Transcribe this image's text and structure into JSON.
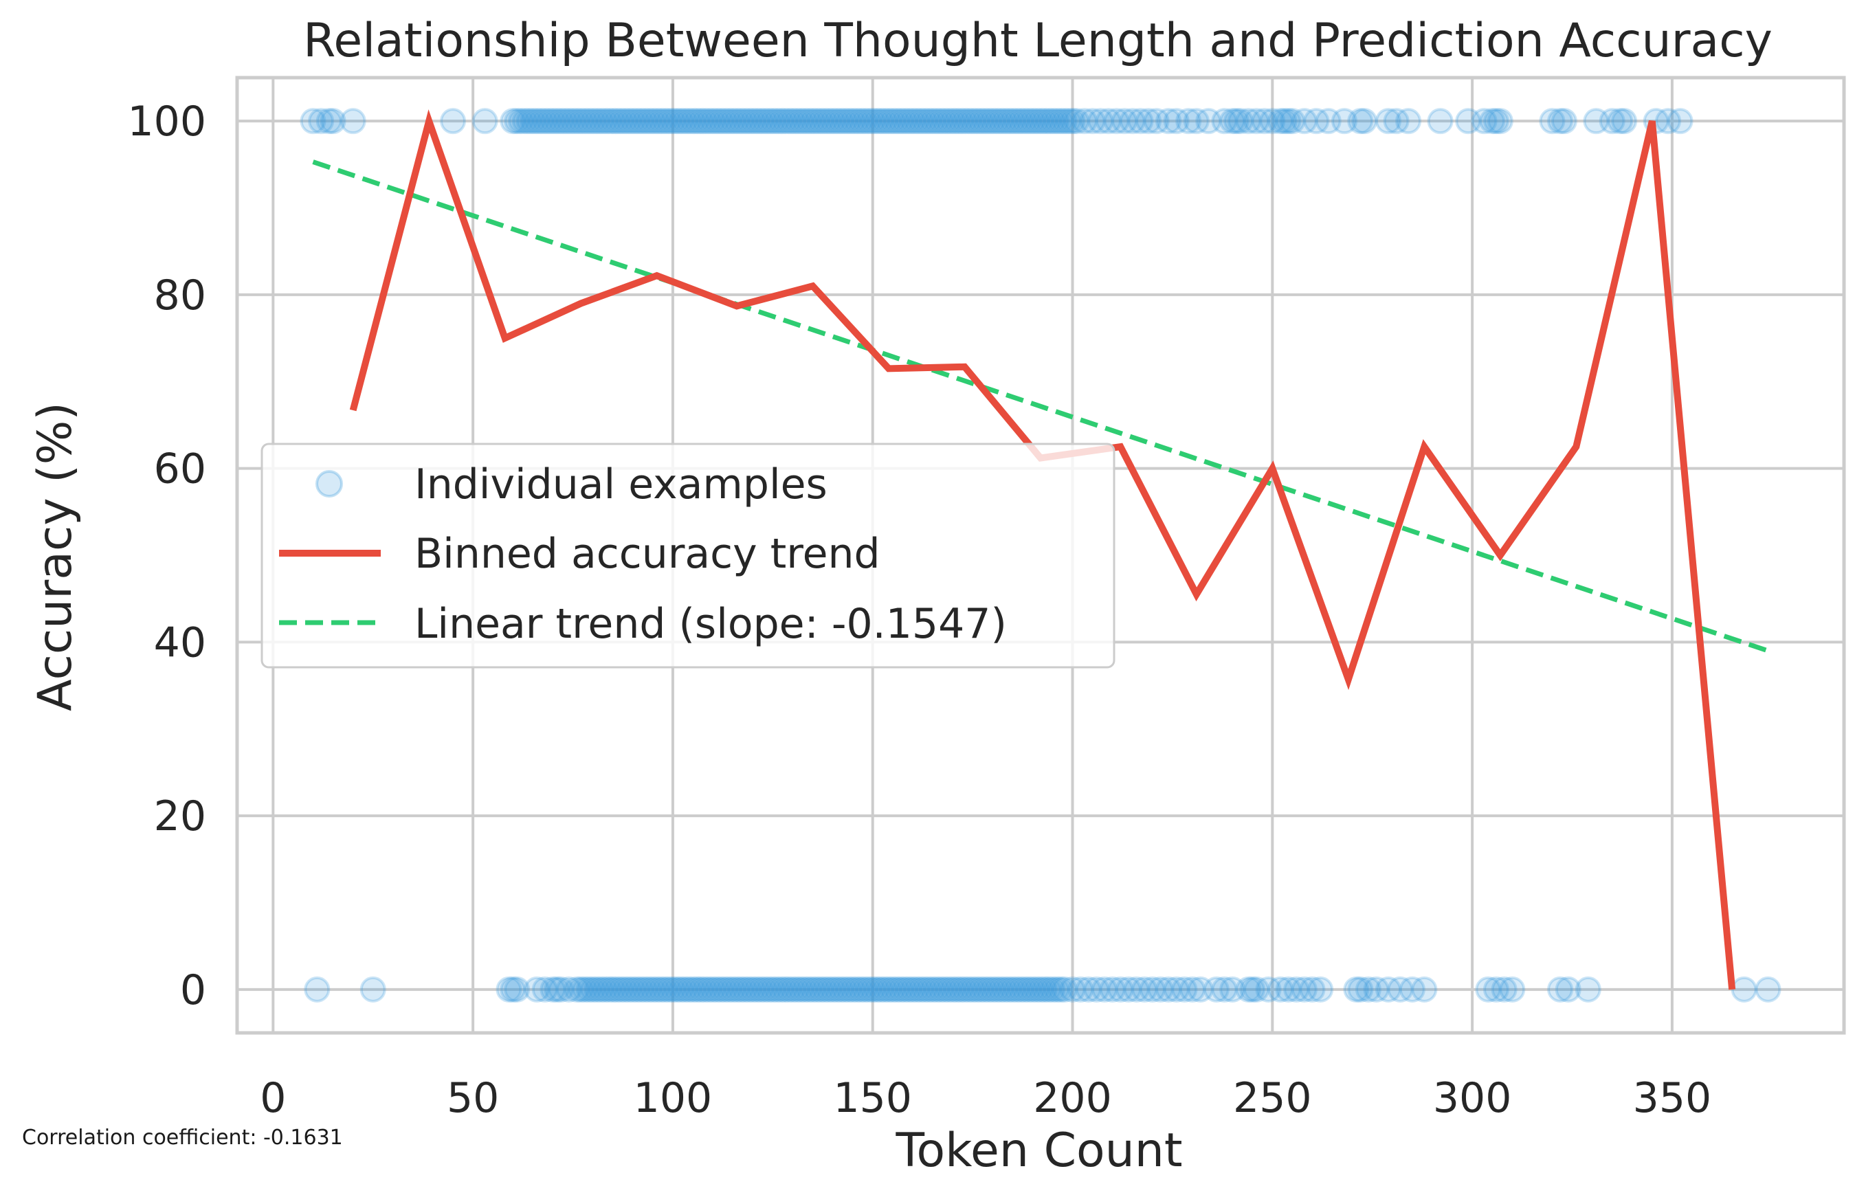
{
  "chart_data": {
    "type": "scatter",
    "title": "Relationship Between Thought Length and Prediction Accuracy",
    "xlabel": "Token Count",
    "ylabel": "Accuracy (%)",
    "xlim": [
      -9,
      393
    ],
    "ylim": [
      -5,
      105
    ],
    "xticks": [
      0,
      50,
      100,
      150,
      200,
      250,
      300,
      350
    ],
    "yticks": [
      0,
      20,
      40,
      60,
      80,
      100
    ],
    "grid": true,
    "legend_position": "center-left",
    "annotation": "Correlation coefficient: -0.1631",
    "series": [
      {
        "name": "Individual examples",
        "kind": "scatter",
        "color": "#3498db",
        "points_y100_x": [
          10,
          12,
          14,
          15,
          20,
          45,
          53,
          60,
          61,
          62,
          63,
          64,
          65,
          66,
          67,
          68,
          69,
          70,
          71,
          72,
          73,
          74,
          75,
          76,
          77,
          78,
          79,
          80,
          81,
          82,
          83,
          84,
          85,
          86,
          87,
          88,
          89,
          90,
          91,
          92,
          93,
          94,
          95,
          96,
          97,
          98,
          99,
          100,
          101,
          102,
          103,
          104,
          105,
          106,
          107,
          108,
          109,
          110,
          111,
          112,
          113,
          114,
          115,
          116,
          117,
          118,
          119,
          120,
          121,
          122,
          123,
          124,
          125,
          126,
          127,
          128,
          129,
          130,
          131,
          132,
          133,
          134,
          135,
          136,
          137,
          138,
          139,
          140,
          141,
          142,
          143,
          144,
          145,
          146,
          147,
          148,
          149,
          150,
          151,
          152,
          153,
          154,
          155,
          156,
          157,
          158,
          159,
          160,
          161,
          162,
          163,
          164,
          165,
          166,
          167,
          168,
          169,
          170,
          171,
          172,
          173,
          174,
          175,
          176,
          177,
          178,
          179,
          180,
          181,
          182,
          183,
          184,
          185,
          186,
          187,
          188,
          189,
          190,
          191,
          192,
          193,
          194,
          195,
          196,
          197,
          198,
          199,
          200,
          201,
          203,
          205,
          207,
          209,
          211,
          213,
          215,
          217,
          219,
          221,
          224,
          226,
          229,
          231,
          234,
          238,
          240,
          241,
          242,
          244,
          246,
          248,
          250,
          252,
          253,
          254,
          255,
          258,
          261,
          264,
          268,
          272,
          273,
          279,
          281,
          284,
          292,
          299,
          303,
          305,
          306,
          307,
          320,
          322,
          323,
          331,
          335,
          337,
          338,
          346,
          349,
          352
        ],
        "points_y0_x": [
          11,
          25,
          59,
          60,
          61,
          66,
          68,
          70,
          71,
          72,
          74,
          76,
          77,
          78,
          79,
          80,
          81,
          82,
          83,
          84,
          85,
          86,
          87,
          88,
          89,
          90,
          91,
          92,
          93,
          94,
          95,
          96,
          97,
          98,
          99,
          100,
          101,
          102,
          103,
          104,
          105,
          106,
          107,
          108,
          109,
          110,
          111,
          112,
          113,
          114,
          115,
          116,
          117,
          118,
          119,
          120,
          121,
          122,
          123,
          124,
          125,
          126,
          127,
          128,
          129,
          130,
          131,
          132,
          133,
          134,
          135,
          136,
          137,
          138,
          139,
          140,
          141,
          142,
          143,
          144,
          145,
          146,
          147,
          148,
          149,
          150,
          151,
          152,
          153,
          154,
          155,
          156,
          157,
          158,
          159,
          160,
          161,
          162,
          163,
          164,
          165,
          166,
          167,
          168,
          169,
          170,
          171,
          172,
          173,
          174,
          175,
          176,
          177,
          178,
          179,
          180,
          181,
          182,
          183,
          184,
          185,
          186,
          187,
          188,
          189,
          190,
          191,
          192,
          193,
          194,
          195,
          196,
          197,
          198,
          200,
          202,
          204,
          206,
          208,
          210,
          212,
          214,
          216,
          218,
          220,
          222,
          224,
          226,
          228,
          230,
          232,
          236,
          238,
          240,
          244,
          245,
          246,
          249,
          252,
          254,
          256,
          258,
          260,
          262,
          271,
          272,
          274,
          276,
          279,
          282,
          285,
          288,
          304,
          306,
          308,
          310,
          322,
          324,
          329,
          368,
          374
        ]
      },
      {
        "name": "Binned accuracy trend",
        "kind": "line",
        "color": "#e74c3c",
        "x": [
          20,
          39,
          58,
          77,
          96,
          116,
          135,
          154,
          173,
          192,
          212,
          231,
          250,
          269,
          288,
          307,
          326,
          345,
          365
        ],
        "y": [
          66.7,
          100,
          75,
          79,
          82.2,
          78.7,
          81,
          71.5,
          71.7,
          61.2,
          62.5,
          45.5,
          60,
          35.7,
          62.5,
          50,
          62.5,
          100,
          0
        ]
      },
      {
        "name": "Linear trend (slope: -0.1547)",
        "kind": "dashed-line",
        "color": "#2ecc71",
        "x": [
          10,
          374
        ],
        "y": [
          95.3,
          39
        ]
      }
    ]
  }
}
